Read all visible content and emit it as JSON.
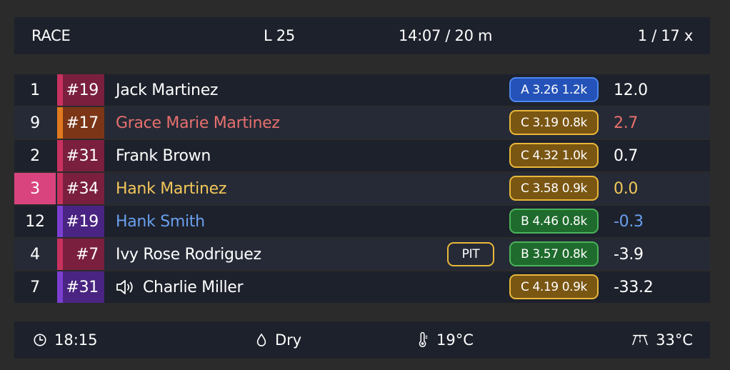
{
  "header": {
    "title": "RACE",
    "lap": "L 25",
    "time": "14:07 / 20 m",
    "position": "1 / 17 x"
  },
  "rows": [
    {
      "pos": "1",
      "num": "#19",
      "name": "Jack Martinez",
      "name_color": "#ffffff",
      "team_color": "#c8325f",
      "num_bg": "#7a1f3d",
      "tyre": "A 3.26 1.2k",
      "tyre_border": "#4d86ee",
      "tyre_bg": "#2452b8",
      "gap": "12.0",
      "gap_color": "#ffffff",
      "pit": "",
      "speaker": false,
      "pos_highlight": false
    },
    {
      "pos": "9",
      "num": "#17",
      "name": "Grace Marie Martinez",
      "name_color": "#e8706e",
      "team_color": "#e07a1f",
      "num_bg": "#7c3617",
      "tyre": "C 3.19 0.8k",
      "tyre_border": "#e9b73a",
      "tyre_bg": "#7a5613",
      "gap": "2.7",
      "gap_color": "#e8706e",
      "pit": "",
      "speaker": false,
      "pos_highlight": false
    },
    {
      "pos": "2",
      "num": "#31",
      "name": "Frank Brown",
      "name_color": "#ffffff",
      "team_color": "#c8325f",
      "num_bg": "#7a1f3d",
      "tyre": "C 4.32 1.0k",
      "tyre_border": "#e9b73a",
      "tyre_bg": "#7a5613",
      "gap": "0.7",
      "gap_color": "#ffffff",
      "pit": "",
      "speaker": false,
      "pos_highlight": false
    },
    {
      "pos": "3",
      "num": "#34",
      "name": "Hank Martinez",
      "name_color": "#f3c75a",
      "team_color": "#c8325f",
      "num_bg": "#7a1f3d",
      "tyre": "C 3.58 0.9k",
      "tyre_border": "#e9b73a",
      "tyre_bg": "#7a5613",
      "gap": "0.0",
      "gap_color": "#f3c75a",
      "pit": "",
      "speaker": false,
      "pos_highlight": true
    },
    {
      "pos": "12",
      "num": "#19",
      "name": "Hank Smith",
      "name_color": "#6aa0f0",
      "team_color": "#7b3fd0",
      "num_bg": "#4a2482",
      "tyre": "B 4.46 0.8k",
      "tyre_border": "#4cb35a",
      "tyre_bg": "#1f6b2d",
      "gap": "-0.3",
      "gap_color": "#6aa0f0",
      "pit": "",
      "speaker": false,
      "pos_highlight": false
    },
    {
      "pos": "4",
      "num": "#7",
      "name": "Ivy Rose Rodriguez",
      "name_color": "#ffffff",
      "team_color": "#c8325f",
      "num_bg": "#7a1f3d",
      "tyre": "B 3.57 0.8k",
      "tyre_border": "#4cb35a",
      "tyre_bg": "#1f6b2d",
      "gap": "-3.9",
      "gap_color": "#ffffff",
      "pit": "PIT",
      "speaker": false,
      "pos_highlight": false
    },
    {
      "pos": "7",
      "num": "#31",
      "name": "Charlie Miller",
      "name_color": "#ffffff",
      "team_color": "#7b3fd0",
      "num_bg": "#4a2482",
      "tyre": "C 4.19 0.9k",
      "tyre_border": "#e9b73a",
      "tyre_bg": "#7a5613",
      "gap": "-33.2",
      "gap_color": "#ffffff",
      "pit": "",
      "speaker": true,
      "pos_highlight": false
    }
  ],
  "footer": {
    "clock": "18:15",
    "weather": "Dry",
    "air_temp": "19°C",
    "track_temp": "33°C"
  },
  "icons": {
    "clock": "clock-icon",
    "weather": "droplet-icon",
    "air": "thermometer-icon",
    "track": "track-temp-icon",
    "speaker": "speaker-icon"
  },
  "colors": {
    "background": "#2b2b2b",
    "panel": "#1d212b",
    "panel_alt": "#252a36",
    "highlight": "#d9447f"
  }
}
